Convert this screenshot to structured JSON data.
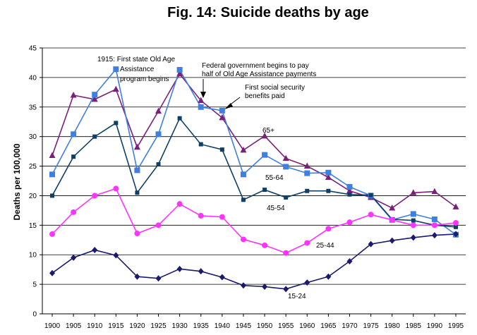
{
  "chart_data": {
    "type": "line",
    "title": "Fig. 14: Suicide deaths by age",
    "xlabel": "",
    "ylabel": "Deaths per 100,000",
    "ylim": [
      0,
      45
    ],
    "yticks": [
      0,
      5,
      10,
      15,
      20,
      25,
      30,
      35,
      40,
      45
    ],
    "grid": true,
    "x": [
      1900,
      1905,
      1910,
      1915,
      1920,
      1925,
      1930,
      1935,
      1940,
      1945,
      1950,
      1955,
      1960,
      1965,
      1970,
      1975,
      1980,
      1985,
      1990,
      1995
    ],
    "series": [
      {
        "name": "65+",
        "color": "#7b1f7b",
        "marker": "triangle",
        "values": [
          26.8,
          37.0,
          36.3,
          38.0,
          28.2,
          34.3,
          40.6,
          36.1,
          33.2,
          27.7,
          30.1,
          26.3,
          25.0,
          23.1,
          20.8,
          19.7,
          17.9,
          20.5,
          20.7,
          18.1
        ]
      },
      {
        "name": "55-64",
        "color": "#3f7fe0",
        "marker": "square",
        "values": [
          23.6,
          30.4,
          37.1,
          41.4,
          24.3,
          30.4,
          41.3,
          35.0,
          34.4,
          23.6,
          26.9,
          24.9,
          23.8,
          23.9,
          21.5,
          20.0,
          15.9,
          16.9,
          16.0,
          13.4
        ]
      },
      {
        "name": "45-54",
        "color": "#0f3f66",
        "marker": "square",
        "values": [
          20.0,
          26.6,
          30.0,
          32.3,
          20.5,
          25.3,
          33.1,
          28.7,
          27.8,
          19.3,
          21.0,
          19.7,
          20.8,
          20.8,
          20.2,
          20.1,
          16.0,
          15.8,
          15.0,
          14.7
        ]
      },
      {
        "name": "25-44",
        "color": "#ff33ff",
        "marker": "circle",
        "values": [
          13.5,
          17.2,
          20.0,
          21.2,
          13.6,
          15.0,
          18.6,
          16.6,
          16.4,
          12.6,
          11.6,
          10.3,
          12.0,
          14.4,
          15.5,
          16.8,
          15.9,
          15.0,
          15.0,
          15.4
        ]
      },
      {
        "name": "15-24",
        "color": "#1a1a6e",
        "marker": "diamond",
        "values": [
          6.9,
          9.5,
          10.8,
          9.9,
          6.3,
          6.0,
          7.6,
          7.2,
          6.2,
          4.8,
          4.6,
          4.2,
          5.3,
          6.3,
          8.9,
          11.8,
          12.4,
          12.9,
          13.3,
          13.5
        ]
      }
    ],
    "annotations": [
      {
        "text_lines": [
          "1915:  First state Old Age",
          "Assistance",
          "program begins"
        ]
      },
      {
        "text_lines": [
          "Federal government begins to pay",
          "half of Old Age Assistance payments"
        ]
      },
      {
        "text_lines": [
          "First social security",
          "benefits paid"
        ]
      }
    ]
  }
}
